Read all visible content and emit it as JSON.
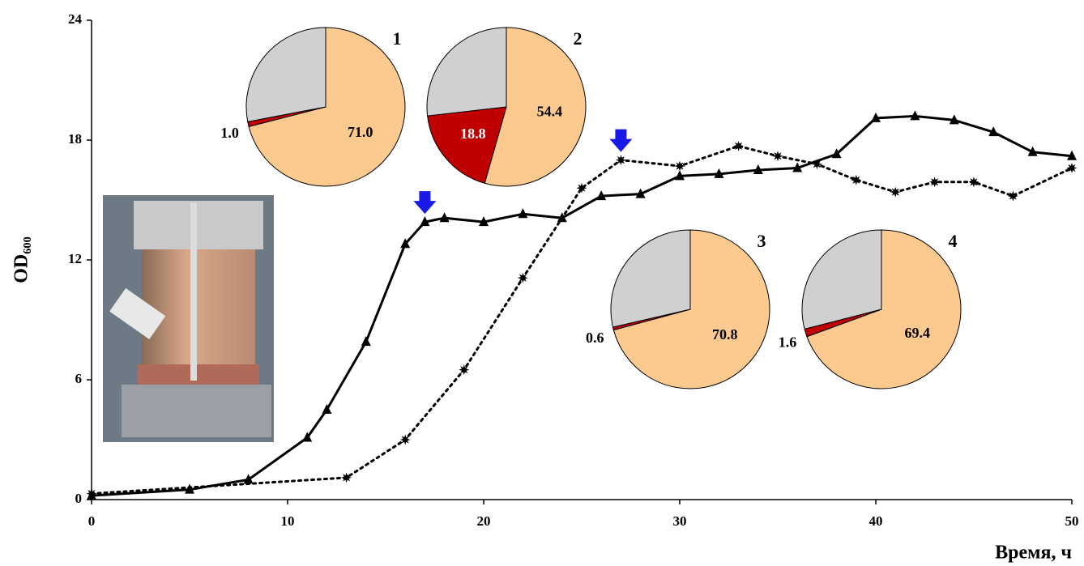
{
  "chart_data": [
    {
      "type": "line",
      "xlabel": "Время, ч",
      "ylabel": "OD₆₀₀",
      "xlim": [
        0,
        50
      ],
      "xticks": [
        0,
        10,
        20,
        30,
        40,
        50
      ],
      "ylim": [
        0,
        24
      ],
      "yticks": [
        0,
        6,
        12,
        18,
        24
      ],
      "grid": false,
      "series": [
        {
          "color": "#000000",
          "linestyle": "solid",
          "marker": "triangle",
          "x": [
            0,
            5,
            8,
            11,
            12,
            14,
            16,
            17,
            18,
            20,
            22,
            24,
            26,
            28,
            30,
            32,
            34,
            36,
            38,
            40,
            42,
            44,
            46,
            48,
            50
          ],
          "values": [
            0.2,
            0.5,
            1.0,
            3.1,
            4.5,
            7.9,
            12.8,
            13.9,
            14.1,
            13.9,
            14.3,
            14.1,
            15.2,
            15.3,
            16.2,
            16.3,
            16.5,
            16.6,
            17.3,
            19.1,
            19.2,
            19.0,
            18.4,
            17.4,
            17.2
          ]
        },
        {
          "color": "#000000",
          "linestyle": "dotted",
          "marker": "star",
          "x": [
            0,
            13,
            16,
            19,
            22,
            25,
            27,
            30,
            33,
            35,
            37,
            39,
            41,
            43,
            45,
            47,
            50
          ],
          "values": [
            0.3,
            1.1,
            3.0,
            6.5,
            11.1,
            15.6,
            17.0,
            16.7,
            17.7,
            17.2,
            16.8,
            16.0,
            15.4,
            15.9,
            15.9,
            15.2,
            16.6
          ]
        }
      ],
      "arrows": {
        "x": [
          17,
          27
        ],
        "color": "#1a1ae6"
      }
    },
    {
      "type": "pie",
      "title": "1",
      "values": [
        71.0,
        1.0,
        28.0
      ],
      "value_labels": [
        "71.0",
        "1.0",
        null
      ],
      "colors": [
        "#fcc98f",
        "#c00000",
        "#d0d0d0"
      ]
    },
    {
      "type": "pie",
      "title": "2",
      "values": [
        54.4,
        18.8,
        26.8
      ],
      "value_labels": [
        "54.4",
        "18.8",
        null
      ],
      "colors": [
        "#fcc98f",
        "#c00000",
        "#d0d0d0"
      ]
    },
    {
      "type": "pie",
      "title": "3",
      "values": [
        70.8,
        0.6,
        28.6
      ],
      "value_labels": [
        "70.8",
        "0.6",
        null
      ],
      "colors": [
        "#fcc98f",
        "#c00000",
        "#d0d0d0"
      ]
    },
    {
      "type": "pie",
      "title": "4",
      "values": [
        69.4,
        1.6,
        29.0
      ],
      "value_labels": [
        "69.4",
        "1.6",
        null
      ],
      "colors": [
        "#fcc98f",
        "#c00000",
        "#d0d0d0"
      ]
    }
  ]
}
